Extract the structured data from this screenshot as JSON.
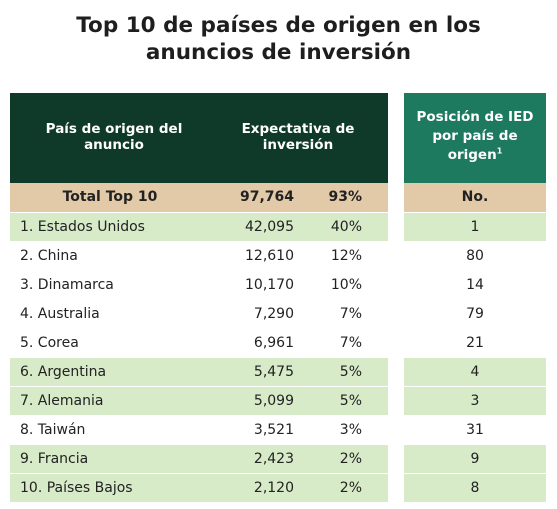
{
  "title": {
    "line1": "Top 10 de países de origen en los",
    "line2": "anuncios de inversión"
  },
  "main_table": {
    "header": {
      "country": "País de origen del anuncio",
      "expectation": "Expectativa de inversión"
    },
    "total": {
      "label": "Total Top 10",
      "value": "97,764",
      "pct": "93%"
    },
    "rows": [
      {
        "country": "1. Estados Unidos",
        "value": "42,095",
        "pct": "40%"
      },
      {
        "country": "2. China",
        "value": "12,610",
        "pct": "12%"
      },
      {
        "country": "3. Dinamarca",
        "value": "10,170",
        "pct": "10%"
      },
      {
        "country": "4. Australia",
        "value": "7,290",
        "pct": "7%"
      },
      {
        "country": "5. Corea",
        "value": "6,961",
        "pct": "7%"
      },
      {
        "country": "6. Argentina",
        "value": "5,475",
        "pct": "5%"
      },
      {
        "country": "7. Alemania",
        "value": "5,099",
        "pct": "5%"
      },
      {
        "country": "8. Taiwán",
        "value": "3,521",
        "pct": "3%"
      },
      {
        "country": "9. Francia",
        "value": "2,423",
        "pct": "2%"
      },
      {
        "country": "10. Países Bajos",
        "value": "2,120",
        "pct": "2%"
      }
    ]
  },
  "side_table": {
    "header": {
      "line1": "Posición de IED",
      "line2": "por país de",
      "line3": "origen",
      "footnote": "1"
    },
    "total_label": "No.",
    "rows": [
      "1",
      "80",
      "14",
      "79",
      "21",
      "4",
      "3",
      "31",
      "9",
      "8"
    ]
  },
  "colors": {
    "main_header_bg": "#0f3a2a",
    "side_header_bg": "#1e7a5e",
    "total_row_bg": "#e2c9a8",
    "green_row_bg": "#d8ebc8"
  }
}
